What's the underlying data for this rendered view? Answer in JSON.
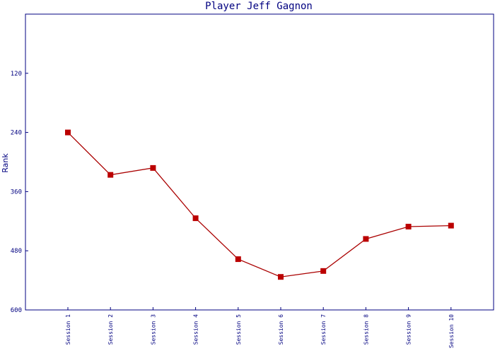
{
  "chart_data": {
    "type": "line",
    "title": "Player Jeff Gagnon",
    "xlabel": "",
    "ylabel": "Rank",
    "y_inverted": true,
    "ylim": [
      600,
      0
    ],
    "yticks": [
      120,
      240,
      360,
      480,
      600
    ],
    "categories": [
      "Session 1",
      "Session 2",
      "Session 3",
      "Session 4",
      "Session 5",
      "Session 6",
      "Session 7",
      "Session 8",
      "Session 9",
      "Session 10"
    ],
    "series": [
      {
        "values": [
          240,
          326,
          312,
          414,
          497,
          533,
          521,
          456,
          431,
          429
        ]
      }
    ],
    "colors": {
      "axis": "#000080",
      "line": "#aa0000",
      "marker": "#bb0000",
      "text": "#000080"
    },
    "grid": false,
    "legend": "none"
  }
}
